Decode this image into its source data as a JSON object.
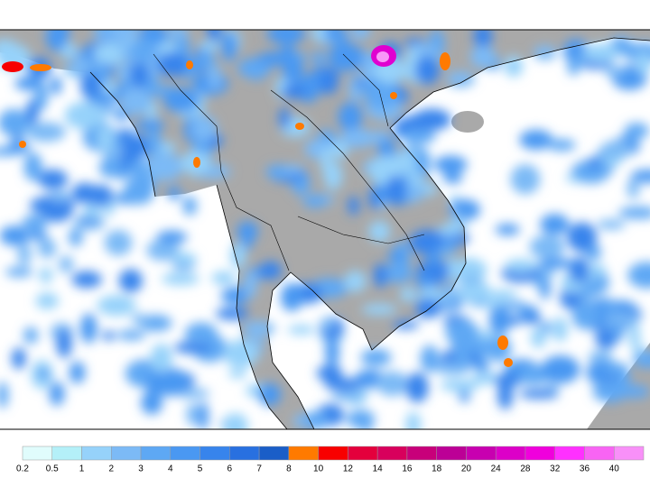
{
  "colorbar": {
    "ticks": [
      0.2,
      0.5,
      1,
      2,
      3,
      4,
      5,
      6,
      7,
      8,
      10,
      12,
      14,
      16,
      18,
      20,
      24,
      28,
      32,
      36,
      40
    ],
    "colors": [
      "#e0fcfc",
      "#b4f0f8",
      "#96d2fa",
      "#7cbaf6",
      "#5ea8f4",
      "#4a98f2",
      "#3784ec",
      "#2870e0",
      "#1a5ec8",
      "#ff7a00",
      "#f80000",
      "#e4003c",
      "#d8005c",
      "#c8007a",
      "#bc0096",
      "#c800b0",
      "#dc00c8",
      "#f000dc",
      "#ff30ff",
      "#f864f4",
      "#f890f8"
    ]
  }
}
